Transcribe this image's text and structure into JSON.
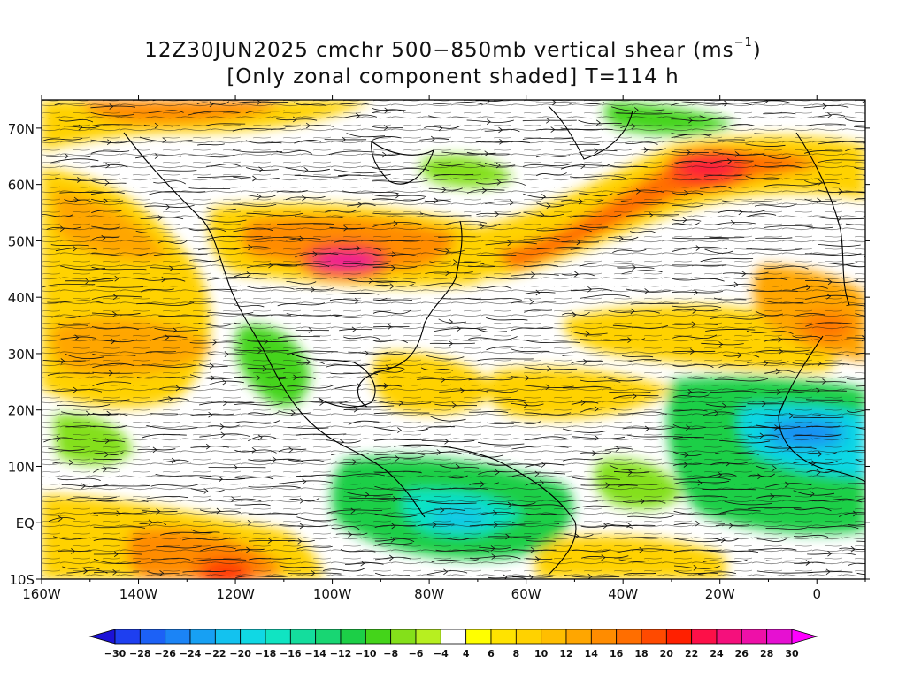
{
  "title": {
    "line1_main": "12Z30JUN2025 cmchr 500−850mb vertical shear (ms",
    "line1_exp": "−1",
    "line1_end": ")",
    "line2": "[Only zonal component shaded] T=114 h"
  },
  "map": {
    "projection": "latitude-longitude",
    "lon_range": [
      -160,
      10
    ],
    "lat_range": [
      -10,
      75
    ],
    "lon_ticks": [
      "160W",
      "140W",
      "120W",
      "100W",
      "80W",
      "60W",
      "40W",
      "20W",
      "0"
    ],
    "lat_ticks": [
      "70N",
      "60N",
      "50N",
      "40N",
      "30N",
      "20N",
      "10N",
      "EQ",
      "10S"
    ],
    "overlay": "streamlines of shear vector",
    "shading": "zonal component of 500−850mb vertical shear",
    "shear_maxima": [
      {
        "lon": -25,
        "lat": 62,
        "value": 24
      },
      {
        "lon": -100,
        "lat": 46,
        "value": 26
      },
      {
        "lon": -120,
        "lat": -8,
        "value": 20
      },
      {
        "lon": -10,
        "lat": 37,
        "value": 16
      }
    ],
    "shear_minima": [
      {
        "lon": -75,
        "lat": 1,
        "value": -14
      },
      {
        "lon": -8,
        "lat": 15,
        "value": -18
      }
    ]
  },
  "colorbar": {
    "levels": [
      "−30",
      "−28",
      "−26",
      "−24",
      "−22",
      "−20",
      "−18",
      "−16",
      "−14",
      "−12",
      "−10",
      "−8",
      "−6",
      "−4",
      "4",
      "6",
      "8",
      "10",
      "12",
      "14",
      "16",
      "18",
      "20",
      "22",
      "24",
      "26",
      "28",
      "30"
    ],
    "colors": [
      "#1c12d6",
      "#1e3ff0",
      "#1c61f6",
      "#1b84f6",
      "#17a0f3",
      "#13c2ef",
      "#10d8e4",
      "#10e4c2",
      "#14dd9d",
      "#18d673",
      "#1ccf47",
      "#44d41a",
      "#84e01a",
      "#b7ef20",
      "#ffffff",
      "#ffff00",
      "#ffe300",
      "#ffd200",
      "#ffbe00",
      "#ffa600",
      "#ff8c00",
      "#ff6e00",
      "#ff4a00",
      "#ff2000",
      "#fd1048",
      "#f5107c",
      "#ee10a8",
      "#e610d2",
      "#ff00ff"
    ]
  }
}
